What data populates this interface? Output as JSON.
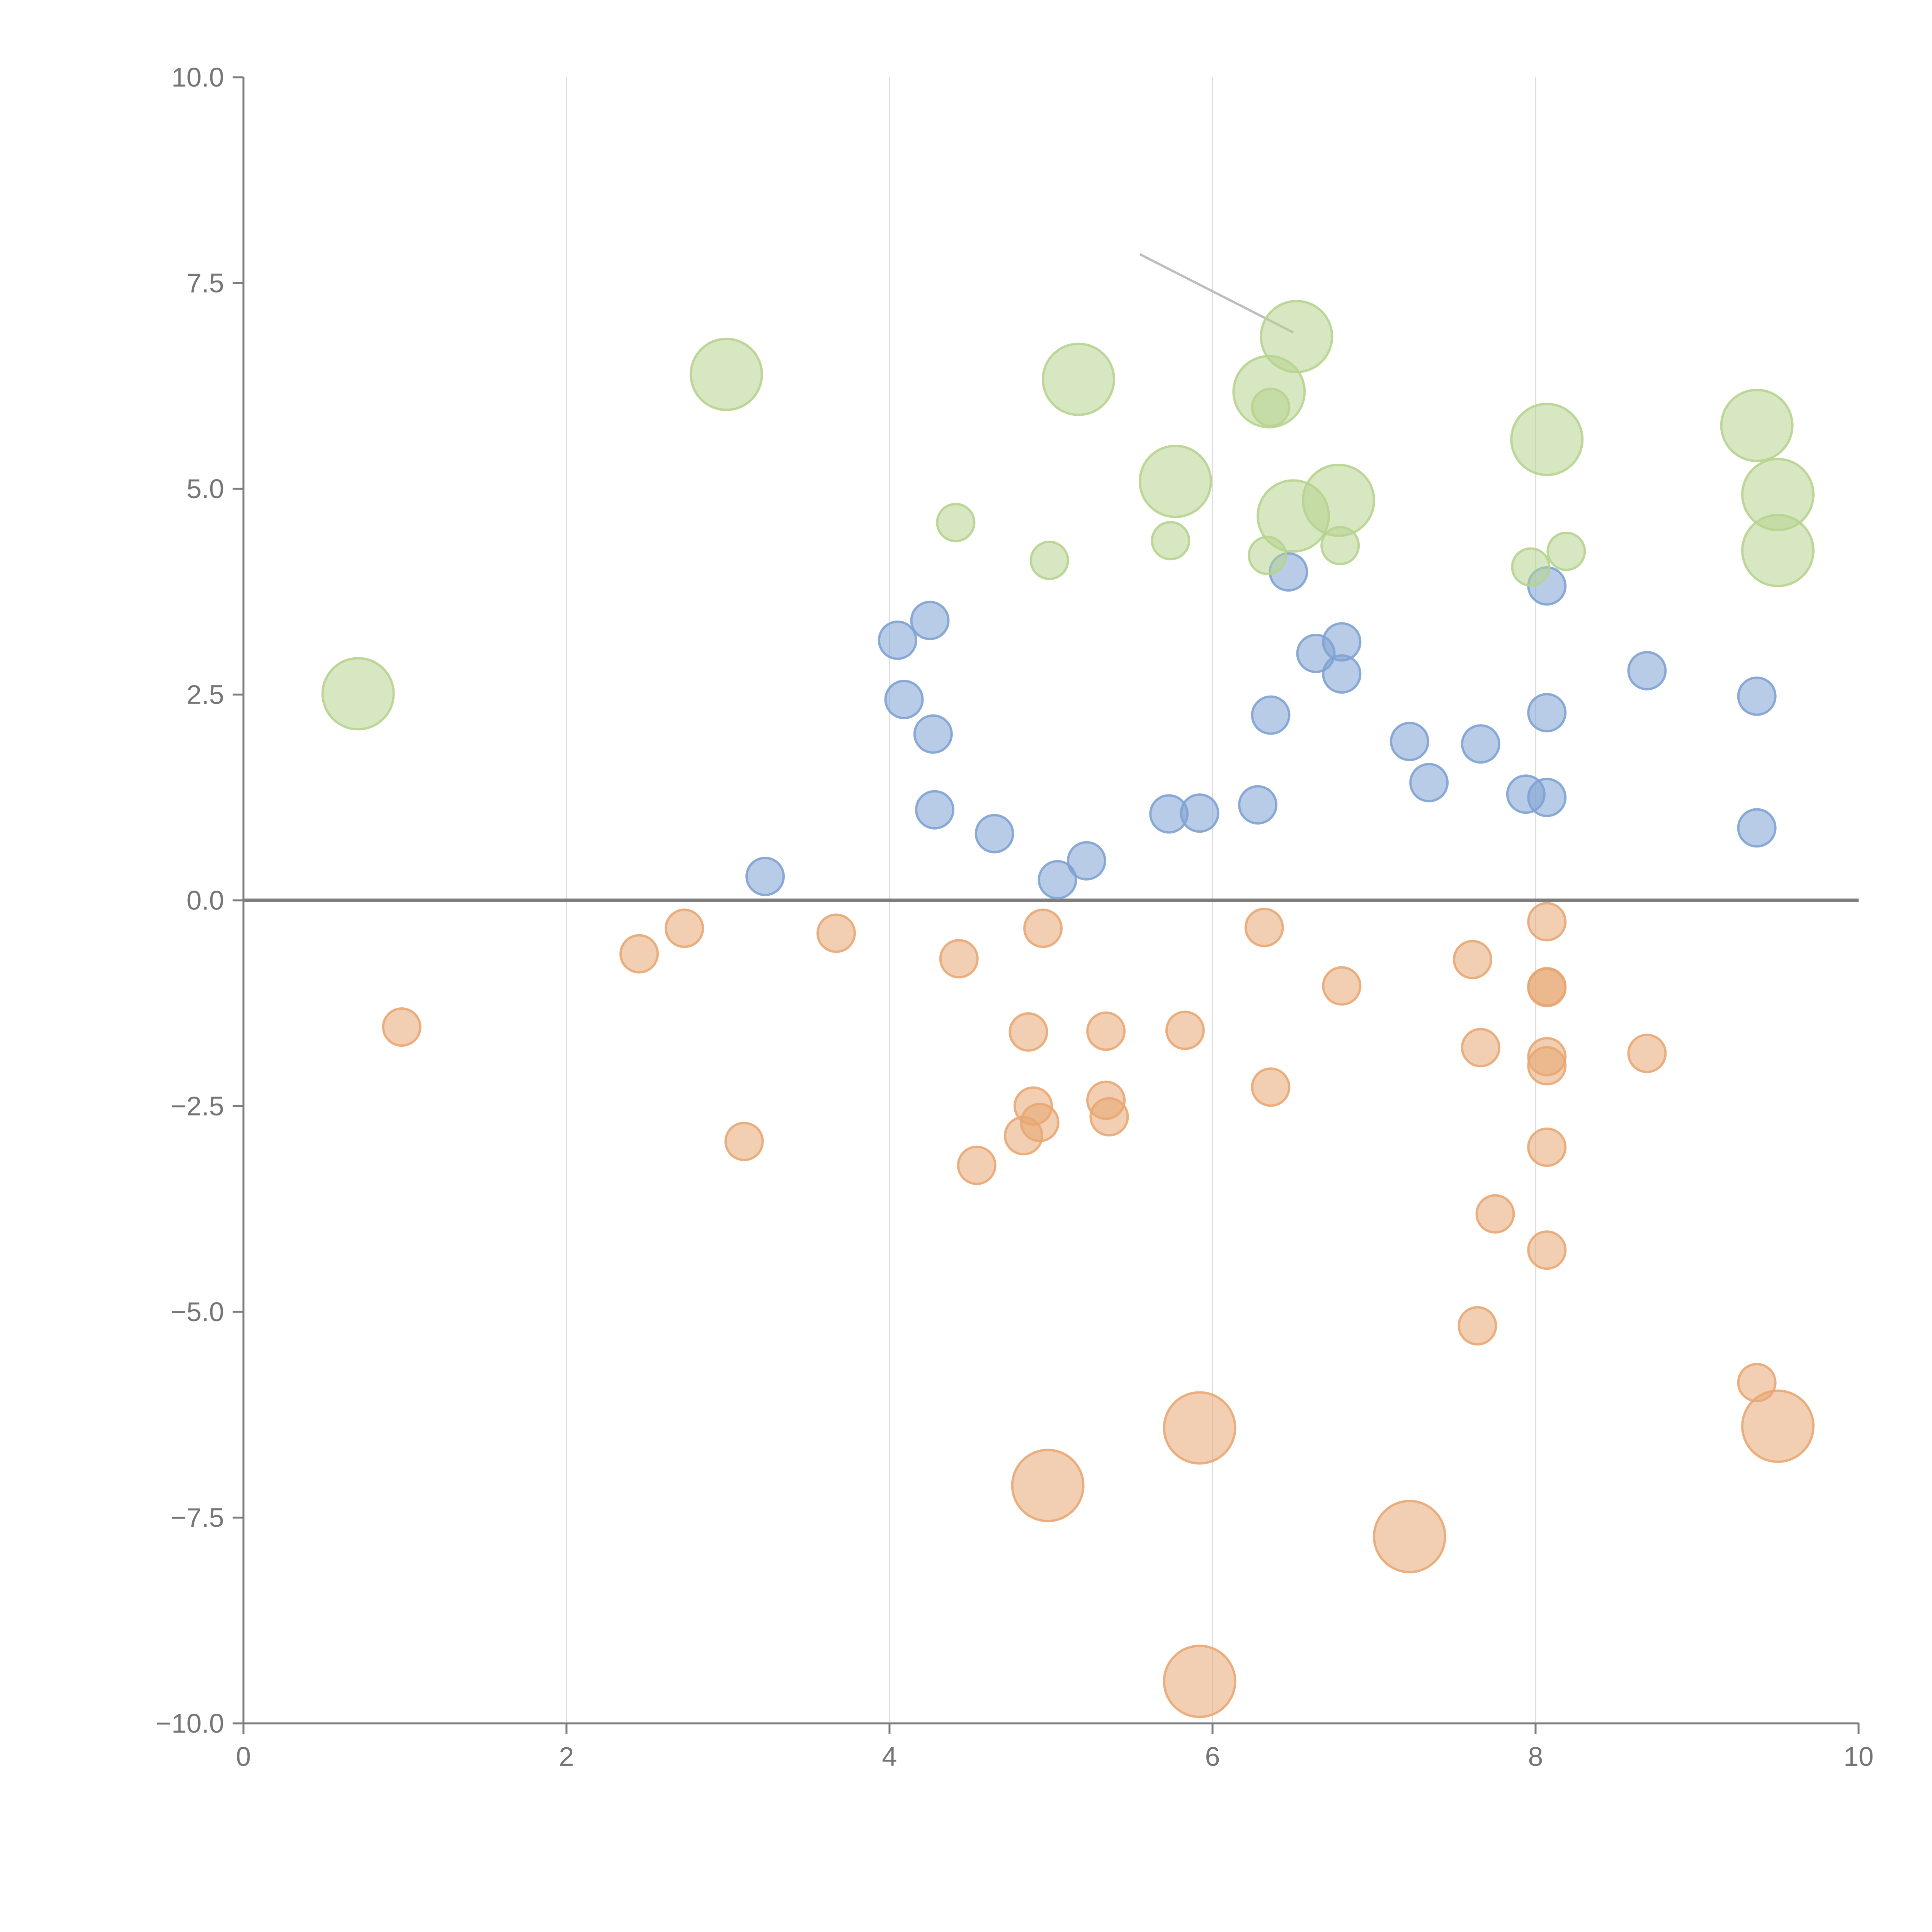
{
  "chart_data": {
    "type": "scatter",
    "title": "",
    "xlabel": "",
    "ylabel": "",
    "xlim": [
      0,
      10
    ],
    "ylim": [
      -10,
      10
    ],
    "x_ticks": [
      0,
      2,
      4,
      6,
      8,
      10
    ],
    "x_tick_labels": [
      "0",
      "2",
      "4",
      "6",
      "8",
      "10"
    ],
    "y_ticks": [
      10,
      7.5,
      5,
      2.5,
      0,
      -2.5,
      -5,
      -7.5,
      -10
    ],
    "y_tick_labels": [
      "10.0",
      "7.5",
      "5.0",
      "2.5",
      "0.0",
      "−2.5",
      "−5.0",
      "−7.5",
      "−10.0"
    ],
    "grid": "vertical",
    "zero_line": true,
    "annotation_line": [
      [
        5.55,
        7.85
      ],
      [
        6.5,
        6.9
      ]
    ],
    "series": [
      {
        "name": "blue",
        "color": "#7fa2d3",
        "points": [
          [
            3.23,
            0.29,
            1
          ],
          [
            4.05,
            3.16,
            1
          ],
          [
            4.25,
            3.4,
            1
          ],
          [
            4.09,
            2.44,
            1
          ],
          [
            4.27,
            2.02,
            1
          ],
          [
            4.28,
            1.1,
            1
          ],
          [
            4.65,
            0.81,
            1
          ],
          [
            5.04,
            0.25,
            1
          ],
          [
            5.22,
            0.48,
            1
          ],
          [
            5.73,
            1.05,
            1
          ],
          [
            5.92,
            1.06,
            1
          ],
          [
            6.28,
            1.16,
            1
          ],
          [
            6.36,
            2.25,
            1
          ],
          [
            6.47,
            3.99,
            1
          ],
          [
            6.64,
            3.0,
            1
          ],
          [
            6.8,
            3.14,
            1
          ],
          [
            6.8,
            2.75,
            1
          ],
          [
            7.22,
            1.93,
            1
          ],
          [
            7.34,
            1.43,
            1
          ],
          [
            7.66,
            1.9,
            1
          ],
          [
            7.94,
            1.29,
            1
          ],
          [
            8.07,
            3.82,
            1
          ],
          [
            8.07,
            2.28,
            1
          ],
          [
            8.07,
            1.25,
            1
          ],
          [
            8.69,
            2.79,
            1
          ],
          [
            9.37,
            2.48,
            1
          ],
          [
            9.37,
            0.88,
            1
          ]
        ]
      },
      {
        "name": "orange",
        "color": "#e8a773",
        "points": [
          [
            0.98,
            -1.54,
            1
          ],
          [
            2.45,
            -0.65,
            1
          ],
          [
            2.73,
            -0.34,
            1
          ],
          [
            3.1,
            -2.93,
            1
          ],
          [
            3.67,
            -0.4,
            1
          ],
          [
            4.43,
            -0.71,
            1
          ],
          [
            4.54,
            -3.22,
            1
          ],
          [
            4.83,
            -2.86,
            1
          ],
          [
            4.86,
            -1.6,
            1
          ],
          [
            4.89,
            -2.5,
            1
          ],
          [
            4.93,
            -2.7,
            1
          ],
          [
            4.95,
            -0.34,
            1
          ],
          [
            5.34,
            -1.59,
            1
          ],
          [
            5.34,
            -2.43,
            1
          ],
          [
            5.36,
            -2.63,
            1
          ],
          [
            5.83,
            -1.58,
            1
          ],
          [
            6.32,
            -0.33,
            1
          ],
          [
            6.36,
            -2.27,
            1
          ],
          [
            6.8,
            -1.04,
            1
          ],
          [
            7.61,
            -0.72,
            1
          ],
          [
            7.66,
            -1.79,
            1
          ],
          [
            7.64,
            -5.17,
            1
          ],
          [
            7.75,
            -3.81,
            1
          ],
          [
            8.07,
            -0.26,
            1
          ],
          [
            8.07,
            -1.05,
            1
          ],
          [
            8.07,
            -1.06,
            1
          ],
          [
            8.07,
            -1.9,
            1
          ],
          [
            8.07,
            -2.01,
            1
          ],
          [
            8.07,
            -3.0,
            1
          ],
          [
            8.07,
            -4.25,
            1
          ],
          [
            8.69,
            -1.86,
            1
          ],
          [
            9.37,
            -5.86,
            1
          ],
          [
            4.98,
            -7.11,
            2
          ],
          [
            5.92,
            -6.41,
            2
          ],
          [
            5.92,
            -9.49,
            2
          ],
          [
            7.22,
            -7.73,
            2
          ],
          [
            9.5,
            -6.39,
            2
          ]
        ]
      },
      {
        "name": "green",
        "color": "#b7d38f",
        "points": [
          [
            0.71,
            2.51,
            2
          ],
          [
            2.99,
            6.39,
            2
          ],
          [
            4.41,
            4.59,
            1
          ],
          [
            4.99,
            4.13,
            1
          ],
          [
            5.17,
            6.33,
            2
          ],
          [
            5.74,
            4.37,
            1
          ],
          [
            5.77,
            5.09,
            2
          ],
          [
            6.34,
            4.19,
            1
          ],
          [
            6.35,
            6.18,
            2
          ],
          [
            6.36,
            5.99,
            1
          ],
          [
            6.5,
            4.67,
            2
          ],
          [
            6.52,
            6.85,
            2
          ],
          [
            6.78,
            4.86,
            2
          ],
          [
            6.79,
            4.31,
            1
          ],
          [
            7.97,
            4.05,
            1
          ],
          [
            8.07,
            5.6,
            2
          ],
          [
            8.19,
            4.24,
            1
          ],
          [
            9.37,
            5.77,
            2
          ],
          [
            9.5,
            4.93,
            2
          ],
          [
            9.5,
            4.25,
            2
          ]
        ]
      }
    ]
  }
}
